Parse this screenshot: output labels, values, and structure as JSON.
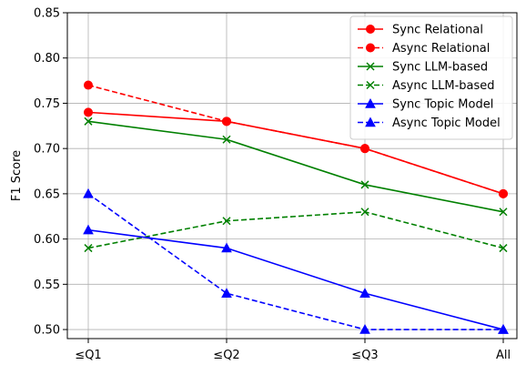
{
  "chart_data": {
    "type": "line",
    "title": "",
    "xlabel": "",
    "ylabel": "F1 Score",
    "categories": [
      "≤Q1",
      "≤Q2",
      "≤Q3",
      "All"
    ],
    "ylim": [
      0.49,
      0.85
    ],
    "yticks": [
      "0.50",
      "0.55",
      "0.60",
      "0.65",
      "0.70",
      "0.75",
      "0.80",
      "0.85"
    ],
    "grid": true,
    "legend_position": "top-right",
    "series": [
      {
        "name": "Sync Relational",
        "values": [
          0.74,
          0.73,
          0.7,
          0.65
        ],
        "color": "#ff0000",
        "linestyle": "solid",
        "marker": "circle"
      },
      {
        "name": "Async Relational",
        "values": [
          0.77,
          0.73,
          0.7,
          0.65
        ],
        "color": "#ff0000",
        "linestyle": "dashed",
        "marker": "circle"
      },
      {
        "name": "Sync LLM-based",
        "values": [
          0.73,
          0.71,
          0.66,
          0.63
        ],
        "color": "#008000",
        "linestyle": "solid",
        "marker": "x"
      },
      {
        "name": "Async LLM-based",
        "values": [
          0.59,
          0.62,
          0.63,
          0.59
        ],
        "color": "#008000",
        "linestyle": "dashed",
        "marker": "x"
      },
      {
        "name": "Sync Topic Model",
        "values": [
          0.61,
          0.59,
          0.54,
          0.5
        ],
        "color": "#0000ff",
        "linestyle": "solid",
        "marker": "triangle"
      },
      {
        "name": "Async Topic Model",
        "values": [
          0.65,
          0.54,
          0.5,
          0.5
        ],
        "color": "#0000ff",
        "linestyle": "dashed",
        "marker": "triangle"
      }
    ]
  }
}
